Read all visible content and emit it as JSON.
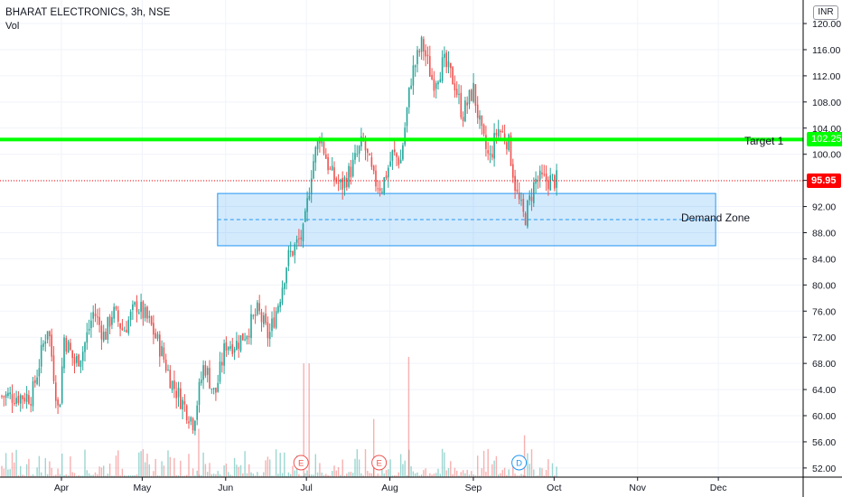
{
  "header": {
    "symbol": "BHARAT ELECTRONICS, 3h, NSE",
    "volume_label": "Vol",
    "currency": "INR"
  },
  "chart_data": {
    "type": "candlestick",
    "x_ticks": [
      "Apr",
      "May",
      "Jun",
      "Jul",
      "Aug",
      "Sep",
      "Oct",
      "Nov",
      "Dec"
    ],
    "y_ticks": [
      52,
      56,
      60,
      64,
      68,
      72,
      76,
      80,
      84,
      88,
      92,
      96,
      100,
      104,
      108,
      112,
      116,
      120
    ],
    "ylim": [
      50.6,
      123.6
    ],
    "price_path": [
      [
        "Mar 21",
        63
      ],
      [
        "Mar 27",
        74
      ],
      [
        "Mar 31",
        60
      ],
      [
        "Apr 2",
        72
      ],
      [
        "Apr 6",
        68
      ],
      [
        "Apr 9",
        70
      ],
      [
        "Apr 13",
        76
      ],
      [
        "Apr 17",
        72
      ],
      [
        "Apr 20",
        76
      ],
      [
        "Apr 24",
        73
      ],
      [
        "Apr 29",
        77
      ],
      [
        "May 4",
        74
      ],
      [
        "May 8",
        70
      ],
      [
        "May 12",
        65
      ],
      [
        "May 16",
        62
      ],
      [
        "May 20",
        59
      ],
      [
        "May 24",
        68
      ],
      [
        "May 28",
        63
      ],
      [
        "Jun 1",
        71
      ],
      [
        "Jun 5",
        71
      ],
      [
        "Jun 9",
        73
      ],
      [
        "Jun 13",
        76
      ],
      [
        "Jun 17",
        72
      ],
      [
        "Jun 21",
        78
      ],
      [
        "Jun 24",
        84
      ],
      [
        "Jun 27",
        86
      ],
      [
        "Jun 30",
        88
      ],
      [
        "Jul 3",
        98
      ],
      [
        "Jul 6",
        103
      ],
      [
        "Jul 10",
        97
      ],
      [
        "Jul 14",
        95
      ],
      [
        "Jul 18",
        98
      ],
      [
        "Jul 22",
        102
      ],
      [
        "Jul 26",
        96
      ],
      [
        "Jul 29",
        95
      ],
      [
        "Aug 2",
        100
      ],
      [
        "Aug 5",
        99
      ],
      [
        "Aug 9",
        112
      ],
      [
        "Aug 13",
        117
      ],
      [
        "Aug 17",
        111
      ],
      [
        "Aug 21",
        114
      ],
      [
        "Aug 25",
        111
      ],
      [
        "Aug 28",
        106
      ],
      [
        "Sep 1",
        110
      ],
      [
        "Sep 4",
        103
      ],
      [
        "Sep 7",
        99
      ],
      [
        "Sep 10",
        104
      ],
      [
        "Sep 14",
        102
      ],
      [
        "Sep 17",
        94
      ],
      [
        "Sep 20",
        90
      ],
      [
        "Sep 24",
        96
      ],
      [
        "Sep 27",
        96
      ],
      [
        "Oct 1",
        96
      ]
    ],
    "volume_spikes": [
      [
        "Jun 30",
        68
      ],
      [
        "Jul 2",
        68
      ],
      [
        "Aug 8",
        69
      ],
      [
        "Jul 26",
        59.5
      ],
      [
        "May 22",
        58
      ],
      [
        "Sep 20",
        57
      ]
    ],
    "last_price": 95.95,
    "horizontal_line": {
      "price": 102.25,
      "label": "Target 1",
      "color": "#00ff00"
    },
    "zone": {
      "top": 94,
      "mid": 90,
      "bottom": 86,
      "start": "May 29",
      "end": "Nov 30",
      "label": "Demand Zone"
    },
    "events": [
      {
        "date": "Jun 29",
        "label": "E"
      },
      {
        "date": "Jul 28",
        "label": "E"
      },
      {
        "date": "Sep 18",
        "label": "D"
      }
    ],
    "colors": {
      "up": "#26a69a",
      "down": "#ef5350",
      "last_price": "#ff0000",
      "zone": "#2196f3"
    }
  }
}
